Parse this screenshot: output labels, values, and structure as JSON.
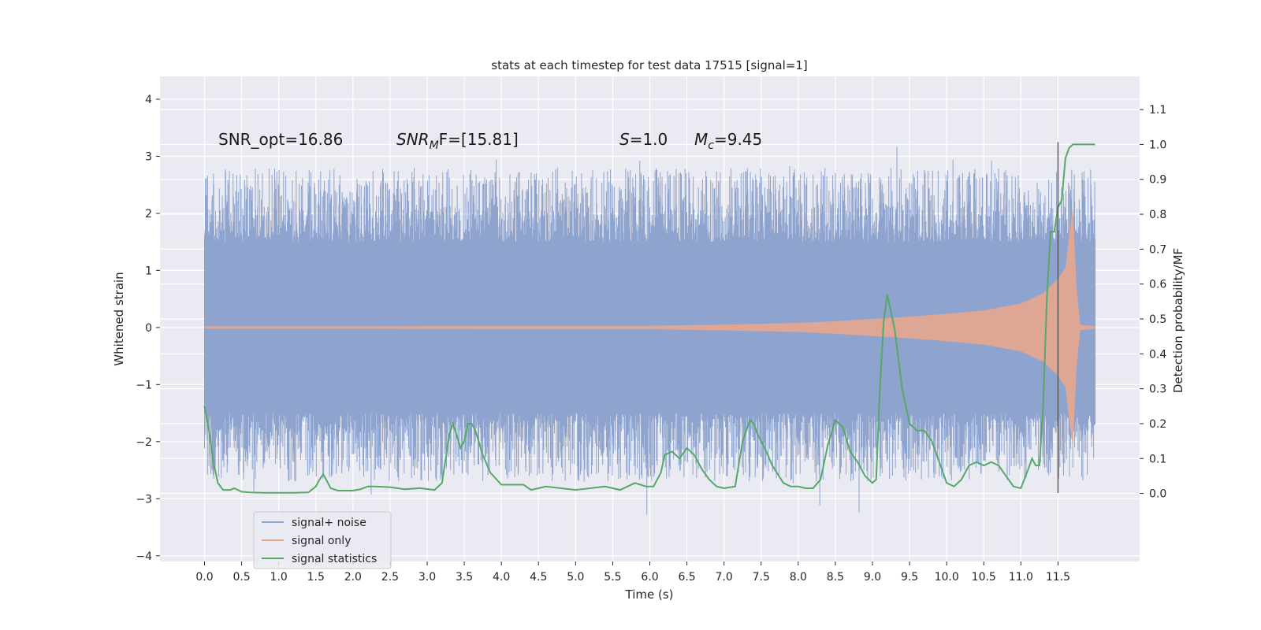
{
  "chart_data": {
    "type": "line",
    "title": "stats at each timestep for test data 17515 [signal=1]",
    "xlabel": "Time (s)",
    "ylabel_left": "Whitened strain",
    "ylabel_right": "Detection probability/MF",
    "xlim": [
      -0.6,
      12.6
    ],
    "ylim_left": [
      -4.1,
      4.4
    ],
    "ylim_right": [
      -0.195,
      1.195
    ],
    "x_ticks": [
      0.0,
      0.5,
      1.0,
      1.5,
      2.0,
      2.5,
      3.0,
      3.5,
      4.0,
      4.5,
      5.0,
      5.5,
      6.0,
      6.5,
      7.0,
      7.5,
      8.0,
      8.5,
      9.0,
      9.5,
      10.0,
      10.5,
      11.0,
      11.5
    ],
    "x_tick_labels": [
      "0.0",
      "0.5",
      "1.0",
      "1.5",
      "2.0",
      "2.5",
      "3.0",
      "3.5",
      "4.0",
      "4.5",
      "5.0",
      "5.5",
      "6.0",
      "6.5",
      "7.0",
      "7.5",
      "8.0",
      "8.5",
      "9.0",
      "9.5",
      "10.0",
      "10.5",
      "11.0",
      "11.5"
    ],
    "y_left_ticks": [
      -4,
      -3,
      -2,
      -1,
      0,
      1,
      2,
      3,
      4
    ],
    "y_left_tick_labels": [
      "−4",
      "−3",
      "−2",
      "−1",
      "0",
      "1",
      "2",
      "3",
      "4"
    ],
    "y_right_ticks": [
      0.0,
      0.1,
      0.2,
      0.3,
      0.4,
      0.5,
      0.6,
      0.7,
      0.8,
      0.9,
      1.0,
      1.1
    ],
    "y_right_tick_labels": [
      "0.0",
      "0.1",
      "0.2",
      "0.3",
      "0.4",
      "0.5",
      "0.6",
      "0.7",
      "0.8",
      "0.9",
      "1.0",
      "1.1"
    ],
    "grid": true,
    "legend_placement": "lower-left",
    "annotations": {
      "snr_opt": "SNR_opt=16.86",
      "snr_mf_name": "SNR",
      "snr_mf_sub": "M",
      "snr_mf_rest": "F=[15.81]",
      "s_name": "S",
      "s_rest": "=1.0",
      "mc_name": "M",
      "mc_sub": "c",
      "mc_rest": "=9.45"
    },
    "noise": {
      "x_range": [
        0.0,
        12.0
      ],
      "dense_band": [
        -1.35,
        1.4
      ],
      "spike_max": 4.1,
      "spike_min": -3.72
    },
    "marker_line": {
      "x": 11.5,
      "y_top": 3.25,
      "y_bottom": -2.9
    },
    "series": [
      {
        "name": "signal+ noise",
        "color": "#8ea3cd",
        "axis": "left",
        "style": "dense-noise"
      },
      {
        "name": "signal only",
        "color": "#e5a68f",
        "axis": "left",
        "style": "chirp",
        "envelope_x": [
          0.0,
          2.0,
          4.0,
          6.0,
          7.0,
          8.0,
          8.5,
          9.0,
          9.5,
          10.0,
          10.5,
          11.0,
          11.3,
          11.5,
          11.6,
          11.65,
          11.7,
          11.75,
          11.8,
          12.0
        ],
        "envelope_y": [
          0.02,
          0.02,
          0.03,
          0.03,
          0.05,
          0.08,
          0.11,
          0.15,
          0.19,
          0.24,
          0.3,
          0.42,
          0.6,
          0.85,
          1.05,
          1.6,
          2.1,
          0.7,
          0.05,
          0.02
        ]
      },
      {
        "name": "signal statistics",
        "color": "#55a868",
        "axis": "right",
        "style": "line",
        "x": [
          0.0,
          0.06,
          0.12,
          0.18,
          0.25,
          0.35,
          0.4,
          0.5,
          0.6,
          0.8,
          1.0,
          1.2,
          1.4,
          1.5,
          1.55,
          1.6,
          1.65,
          1.7,
          1.8,
          2.0,
          2.1,
          2.2,
          2.3,
          2.5,
          2.7,
          2.9,
          3.1,
          3.2,
          3.25,
          3.3,
          3.35,
          3.45,
          3.5,
          3.55,
          3.6,
          3.65,
          3.75,
          3.85,
          4.0,
          4.1,
          4.3,
          4.4,
          4.6,
          4.8,
          5.0,
          5.2,
          5.4,
          5.6,
          5.8,
          5.95,
          6.05,
          6.15,
          6.2,
          6.3,
          6.4,
          6.5,
          6.6,
          6.7,
          6.8,
          6.9,
          7.0,
          7.15,
          7.25,
          7.35,
          7.4,
          7.45,
          7.55,
          7.65,
          7.8,
          7.9,
          8.0,
          8.1,
          8.2,
          8.3,
          8.4,
          8.5,
          8.6,
          8.7,
          8.8,
          8.9,
          9.0,
          9.05,
          9.1,
          9.15,
          9.2,
          9.3,
          9.4,
          9.5,
          9.6,
          9.7,
          9.8,
          9.9,
          10.0,
          10.1,
          10.2,
          10.3,
          10.4,
          10.5,
          10.6,
          10.7,
          10.8,
          10.9,
          11.0,
          11.1,
          11.15,
          11.2,
          11.25,
          11.3,
          11.35,
          11.4,
          11.45,
          11.5,
          11.55,
          11.6,
          11.65,
          11.7,
          11.8,
          11.9,
          12.0
        ],
        "values": [
          0.25,
          0.18,
          0.09,
          0.03,
          0.01,
          0.01,
          0.015,
          0.005,
          0.003,
          0.002,
          0.002,
          0.002,
          0.003,
          0.02,
          0.04,
          0.055,
          0.035,
          0.015,
          0.008,
          0.008,
          0.012,
          0.02,
          0.02,
          0.018,
          0.012,
          0.015,
          0.01,
          0.03,
          0.1,
          0.17,
          0.2,
          0.13,
          0.15,
          0.2,
          0.2,
          0.18,
          0.11,
          0.06,
          0.025,
          0.025,
          0.025,
          0.01,
          0.02,
          0.015,
          0.01,
          0.015,
          0.02,
          0.01,
          0.03,
          0.02,
          0.02,
          0.06,
          0.11,
          0.12,
          0.1,
          0.13,
          0.11,
          0.07,
          0.04,
          0.02,
          0.015,
          0.02,
          0.15,
          0.21,
          0.2,
          0.17,
          0.13,
          0.08,
          0.03,
          0.02,
          0.02,
          0.015,
          0.015,
          0.04,
          0.14,
          0.21,
          0.19,
          0.12,
          0.09,
          0.05,
          0.03,
          0.04,
          0.3,
          0.49,
          0.57,
          0.47,
          0.3,
          0.2,
          0.18,
          0.18,
          0.15,
          0.09,
          0.03,
          0.02,
          0.04,
          0.08,
          0.09,
          0.08,
          0.09,
          0.08,
          0.05,
          0.02,
          0.015,
          0.07,
          0.1,
          0.08,
          0.08,
          0.25,
          0.56,
          0.75,
          0.75,
          0.82,
          0.84,
          0.96,
          0.99,
          1.0,
          1.0,
          1.0,
          1.0
        ]
      }
    ]
  }
}
